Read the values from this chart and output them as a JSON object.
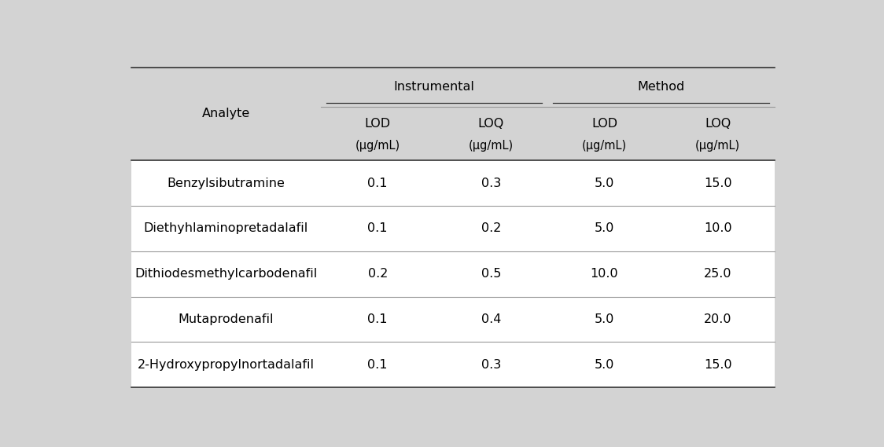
{
  "header_bg_color": "#d3d3d3",
  "body_bg_color": "#ffffff",
  "outer_bg_color": "#d3d3d3",
  "analytes": [
    "Benzylsibutramine",
    "Diethyhlaminopretadalafil",
    "Dithiodesmethylcarbodenafil",
    "Mutaprodenafil",
    "2-Hydroxypropylnortadalafil"
  ],
  "instrumental_lod": [
    "0.1",
    "0.1",
    "0.2",
    "0.1",
    "0.1"
  ],
  "instrumental_loq": [
    "0.3",
    "0.2",
    "0.5",
    "0.4",
    "0.3"
  ],
  "method_lod": [
    "5.0",
    "5.0",
    "10.0",
    "5.0",
    "5.0"
  ],
  "method_loq": [
    "15.0",
    "10.0",
    "25.0",
    "20.0",
    "15.0"
  ],
  "col_header_1": "Instrumental",
  "col_header_2": "Method",
  "col_subheader_lod": "LOD",
  "col_subheader_loq": "LOQ",
  "col_unit": "(μg/mL)",
  "row_header": "Analyte",
  "font_size": 11.5,
  "header_font_size": 11.5,
  "line_color_dark": "#333333",
  "line_color_light": "#999999"
}
